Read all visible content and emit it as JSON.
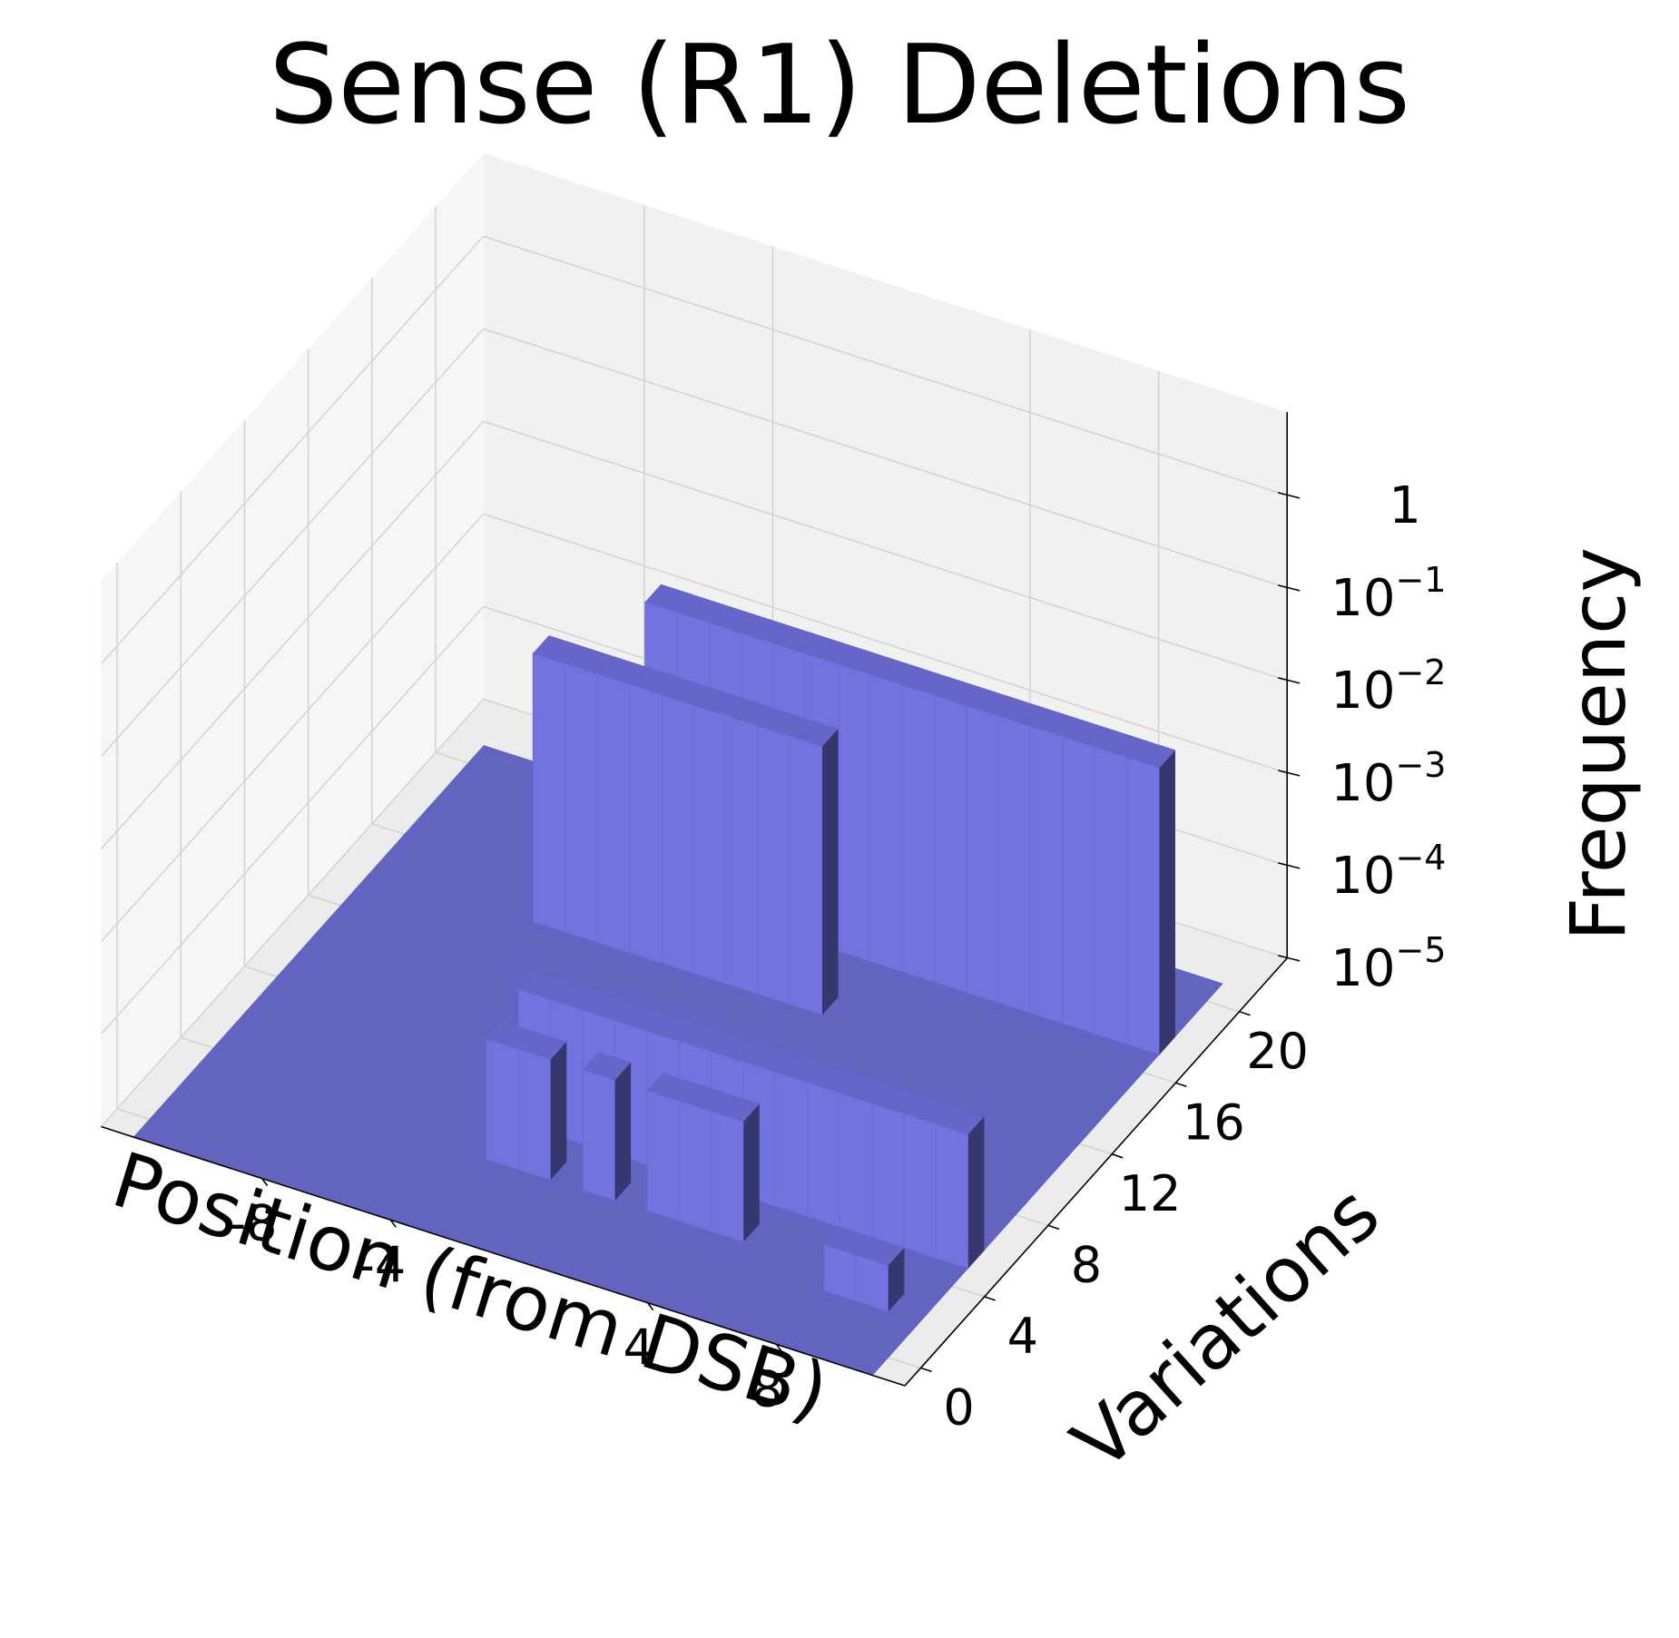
{
  "chart_data": {
    "type": "bar3d",
    "title": "Sense (R1) Deletions",
    "xlabel": "Position (from DSB)",
    "ylabel": "Variations",
    "zlabel": "Frequency",
    "x_ticks": [
      "-8",
      "-4",
      "4",
      "8"
    ],
    "y_ticks": [
      "0",
      "4",
      "8",
      "12",
      "16",
      "20"
    ],
    "z_ticks": [
      {
        "base": "10",
        "exp": "−5"
      },
      {
        "base": "10",
        "exp": "−4"
      },
      {
        "base": "10",
        "exp": "−3"
      },
      {
        "base": "10",
        "exp": "−2"
      },
      {
        "base": "10",
        "exp": "−1"
      },
      {
        "base": "1",
        "exp": ""
      }
    ],
    "z_scale": "log",
    "zlim_log10": [
      -5,
      0
    ],
    "grid": true,
    "bar_color": "#7373e0",
    "floor_color": "#6363c0",
    "bars": [
      {
        "x": -5,
        "y": 17,
        "x_end": 11,
        "z_log10": -1.9
      },
      {
        "x": -7,
        "y": 14,
        "x_end": 2,
        "z_log10": -2.1
      },
      {
        "x": -3,
        "y": 5,
        "x_end": 11,
        "z_log10": -3.55
      },
      {
        "x": -3,
        "y": 3,
        "x_end": -1,
        "z_log10": -3.7
      },
      {
        "x": 0,
        "y": 3,
        "x_end": 1,
        "z_log10": -3.7
      },
      {
        "x": 2,
        "y": 3,
        "x_end": 5,
        "z_log10": -3.7
      },
      {
        "x": 8,
        "y": 2,
        "x_end": 10,
        "z_log10": -4.5
      }
    ]
  }
}
